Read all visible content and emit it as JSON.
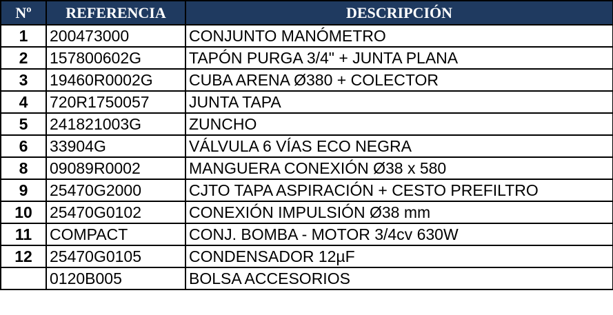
{
  "header": {
    "num": "Nº",
    "ref": "REFERENCIA",
    "desc": "DESCRIPCIÓN"
  },
  "colors": {
    "header_bg": "#1f3a60",
    "header_text": "#ffffff"
  },
  "rows": [
    {
      "num": "1",
      "ref": "200473000",
      "desc": "CONJUNTO MANÓMETRO"
    },
    {
      "num": "2",
      "ref": "157800602G",
      "desc": "TAPÓN PURGA 3/4\" + JUNTA PLANA"
    },
    {
      "num": "3",
      "ref": "19460R0002G",
      "desc": "CUBA ARENA Ø380 + COLECTOR"
    },
    {
      "num": "4",
      "ref": "720R1750057",
      "desc": "JUNTA TAPA"
    },
    {
      "num": "5",
      "ref": "241821003G",
      "desc": "ZUNCHO"
    },
    {
      "num": "6",
      "ref": "33904G",
      "desc": "VÁLVULA 6 VÍAS ECO NEGRA"
    },
    {
      "num": "8",
      "ref": "09089R0002",
      "desc": "MANGUERA CONEXIÓN Ø38 x 580"
    },
    {
      "num": "9",
      "ref": "25470G2000",
      "desc": "CJTO TAPA ASPIRACIÓN + CESTO PREFILTRO"
    },
    {
      "num": "10",
      "ref": "25470G0102",
      "desc": "CONEXIÓN IMPULSIÓN Ø38 mm"
    },
    {
      "num": "11",
      "ref": "COMPACT",
      "desc": "CONJ. BOMBA - MOTOR 3/4cv  630W"
    },
    {
      "num": "12",
      "ref": "25470G0105",
      "desc": "CONDENSADOR 12µF"
    },
    {
      "num": "",
      "ref": "0120B005",
      "desc": "BOLSA ACCESORIOS"
    }
  ]
}
